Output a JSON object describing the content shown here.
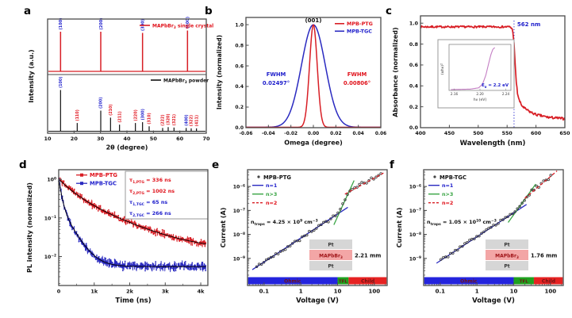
{
  "colors": {
    "red": "#d81e25",
    "blue": "#2a2ac0",
    "text_red": "#e0131c",
    "text_blue": "#2020cc",
    "green": "#3aa545",
    "black": "#101010",
    "frame": "#4a4a4a",
    "box_border": "#999999",
    "inset_curve": "#c47ec4",
    "bar_blue": "#2424dd",
    "bar_green": "#1fa11f",
    "bar_red": "#e62222",
    "bar_label": "#701414",
    "pt_fill": "#d6d6d6",
    "mapb_fill": "#f3a6a6",
    "mapb_text": "#a01418"
  },
  "chart_data": [
    {
      "id": "a",
      "label": "a",
      "type": "line",
      "xlabel": "2θ (degree)",
      "ylabel": "Intensity (a.u.)",
      "xlim": [
        10,
        70
      ],
      "xticks": [
        10,
        20,
        30,
        40,
        50,
        60,
        70
      ],
      "crystal_legend_parts": [
        {
          "t": "MAPbBr"
        },
        {
          "sub": "3"
        },
        {
          "t": " single crystal"
        }
      ],
      "powder_legend_parts": [
        {
          "t": "MAPbBr"
        },
        {
          "sub": "3"
        },
        {
          "t": " powder"
        }
      ],
      "crystal_peaks": [
        {
          "x": 14.9,
          "h": 1.0,
          "label": "(100)"
        },
        {
          "x": 30.1,
          "h": 1.0,
          "label": "(200)"
        },
        {
          "x": 45.9,
          "h": 0.97,
          "label": "(300)"
        },
        {
          "x": 62.9,
          "h": 1.03,
          "label": "(400)"
        }
      ],
      "powder_peaks": [
        {
          "x": 14.9,
          "h": 1.0,
          "label": "(100)",
          "c": "blue"
        },
        {
          "x": 21.2,
          "h": 0.2,
          "label": "(110)",
          "c": "red"
        },
        {
          "x": 30.1,
          "h": 0.5,
          "label": "(200)",
          "c": "blue"
        },
        {
          "x": 33.8,
          "h": 0.33,
          "label": "(210)",
          "c": "red"
        },
        {
          "x": 37.2,
          "h": 0.16,
          "label": "(211)",
          "c": "red"
        },
        {
          "x": 43.2,
          "h": 0.2,
          "label": "(220)",
          "c": "red"
        },
        {
          "x": 45.9,
          "h": 0.22,
          "label": "(300)",
          "c": "blue"
        },
        {
          "x": 48.4,
          "h": 0.12,
          "label": "(310)",
          "c": "red"
        },
        {
          "x": 53.5,
          "h": 0.08,
          "label": "(222)",
          "c": "red"
        },
        {
          "x": 55.6,
          "h": 0.1,
          "label": "(320)",
          "c": "red"
        },
        {
          "x": 57.8,
          "h": 0.09,
          "label": "(321)",
          "c": "red"
        },
        {
          "x": 62.4,
          "h": 0.08,
          "label": "(400)",
          "c": "blue"
        },
        {
          "x": 64.3,
          "h": 0.07,
          "label": "(322)",
          "c": "red"
        },
        {
          "x": 66.3,
          "h": 0.07,
          "label": "(411)",
          "c": "red"
        }
      ]
    },
    {
      "id": "b",
      "label": "b",
      "type": "line",
      "xlabel": "Omega (degree)",
      "ylabel": "Intensity (normalized)",
      "xlim": [
        -0.06,
        0.06
      ],
      "xtick_labels": [
        "-0.06",
        "-0.04",
        "-0.02",
        "0.00",
        "0.02",
        "0.04",
        "0.06"
      ],
      "ytick_labels": [
        "0.0",
        "0.2",
        "0.4",
        "0.6",
        "0.8",
        "1.0"
      ],
      "peak_label": "(001)",
      "series": [
        {
          "name": "MPB-PTG",
          "color": "red",
          "fwhm": 0.00806,
          "fwhm_lines": [
            "FWHM",
            "0.00806°"
          ],
          "side": "right"
        },
        {
          "name": "MPB-TGC",
          "color": "blue",
          "fwhm": 0.02497,
          "fwhm_lines": [
            "FWHM",
            "0.02497°"
          ],
          "side": "left"
        }
      ]
    },
    {
      "id": "c",
      "label": "c",
      "type": "line",
      "xlabel": "Wavelength (nm)",
      "ylabel": "Absorbance (normalized)",
      "xlim": [
        400,
        650
      ],
      "xticks": [
        400,
        450,
        500,
        550,
        600,
        650
      ],
      "ytick_labels": [
        "0.0",
        "0.2",
        "0.4",
        "0.6",
        "0.8",
        "1.0"
      ],
      "edge_nm": 562,
      "edge_label": "562 nm",
      "curve": [
        [
          400,
          0.965
        ],
        [
          555,
          0.965
        ],
        [
          558,
          0.95
        ],
        [
          560,
          0.92
        ],
        [
          562,
          0.8
        ],
        [
          564,
          0.6
        ],
        [
          566,
          0.43
        ],
        [
          568,
          0.33
        ],
        [
          571,
          0.26
        ],
        [
          575,
          0.215
        ],
        [
          580,
          0.185
        ],
        [
          590,
          0.15
        ],
        [
          600,
          0.125
        ],
        [
          620,
          0.1
        ],
        [
          650,
          0.085
        ]
      ],
      "inset": {
        "xlabel_parts": [
          {
            "t": "hν (eV)"
          }
        ],
        "ylabel_parts": [
          {
            "t": "(αhν)"
          },
          {
            "sup": "2"
          }
        ],
        "xtick_labels": [
          "2.16",
          "2.20",
          "2.24"
        ],
        "eg_parts": [
          {
            "t": "E"
          },
          {
            "sub": "g"
          },
          {
            "t": " = 2.2 eV"
          }
        ],
        "curve": [
          [
            2.155,
            0.02
          ],
          [
            2.185,
            0.03
          ],
          [
            2.198,
            0.06
          ],
          [
            2.204,
            0.15
          ],
          [
            2.209,
            0.35
          ],
          [
            2.213,
            0.6
          ],
          [
            2.217,
            0.84
          ],
          [
            2.22,
            0.96
          ],
          [
            2.223,
            1.0
          ]
        ]
      }
    },
    {
      "id": "d",
      "label": "d",
      "type": "scatter",
      "xlabel": "Time (ns)",
      "ylabel": "PL intensity (normalized)",
      "xlim": [
        0,
        4000
      ],
      "xtick_labels": [
        "0",
        "1k",
        "2k",
        "3k",
        "4k"
      ],
      "ytick_exps": [
        "0",
        "−1",
        "−2"
      ],
      "series": [
        {
          "name": "MPB-PTG",
          "color": "red",
          "a1": 0.55,
          "tau1": 336,
          "a2": 0.45,
          "tau2": 1002,
          "floor": 0.014,
          "noise": 0.2
        },
        {
          "name": "MPB-TGC",
          "color": "blue",
          "a1": 0.78,
          "tau1": 65,
          "a2": 0.22,
          "tau2": 266,
          "floor": 0.0055,
          "noise": 0.27
        }
      ],
      "tau_annotations": [
        {
          "parts": [
            {
              "t": "τ"
            },
            {
              "sub": "1,PTG"
            },
            {
              "t": " = 336 ns"
            }
          ],
          "color": "red"
        },
        {
          "parts": [
            {
              "t": "τ"
            },
            {
              "sub": "2,PTG"
            },
            {
              "t": " = 1002 ns"
            }
          ],
          "color": "red"
        },
        {
          "parts": [
            {
              "t": "τ"
            },
            {
              "sub": "1,TGC"
            },
            {
              "t": " = 65 ns"
            }
          ],
          "color": "blue"
        },
        {
          "parts": [
            {
              "t": "τ"
            },
            {
              "sub": "2,TGC"
            },
            {
              "t": " = 266 ns"
            }
          ],
          "color": "blue"
        }
      ]
    },
    {
      "id": "e",
      "label": "e",
      "type": "scatter",
      "name": "MPB-PTG",
      "xlabel": "Voltage (V)",
      "ylabel": "Current (A)",
      "xtick_labels": [
        "0.1",
        "1",
        "10",
        "100"
      ],
      "ytick_exps": [
        "−6",
        "−7",
        "−8",
        "−9"
      ],
      "ntraps_parts": [
        {
          "t": "n"
        },
        {
          "sub": "traps"
        },
        {
          "t": " = 4.25 × 10"
        },
        {
          "sup": "9"
        },
        {
          "t": " cm"
        },
        {
          "sup": "−3"
        }
      ],
      "legend": [
        {
          "label": "n=1",
          "color": "blue",
          "dash": false
        },
        {
          "label": "n>3",
          "color": "green",
          "dash": false
        },
        {
          "label": "n=2",
          "color": "red",
          "dash": true
        }
      ],
      "anchors": [
        [
          -1.2,
          -9.35
        ],
        [
          1.0,
          -7.15
        ],
        [
          1.35,
          -6.15
        ],
        [
          2.18,
          -5.5
        ]
      ],
      "fit_blue": [
        [
          -1.32,
          -9.47
        ],
        [
          1.28,
          -6.87
        ]
      ],
      "fit_green": [
        [
          0.9,
          -7.6
        ],
        [
          1.45,
          -5.75
        ]
      ],
      "fit_red": [
        [
          1.2,
          -6.32
        ],
        [
          2.25,
          -5.44
        ]
      ],
      "regions": {
        "blue_to": 1.0,
        "green_to": 1.3
      },
      "region_labels": [
        "Ohmic",
        "TFL",
        "Child"
      ],
      "device_layers": {
        "top": "Pt",
        "bottom": "Pt",
        "middle_parts": [
          {
            "t": "MAPbBr"
          },
          {
            "sub": "3"
          }
        ]
      },
      "thickness": "2.21 mm"
    },
    {
      "id": "f",
      "label": "f",
      "type": "scatter",
      "name": "MPB-TGC",
      "xlabel": "Voltage (V)",
      "ylabel": "Current (A)",
      "xtick_labels": [
        "0.1",
        "1",
        "10",
        "100"
      ],
      "ytick_exps": [
        "−6",
        "−7",
        "−8",
        "−9"
      ],
      "ntraps_parts": [
        {
          "t": "n"
        },
        {
          "sub": "traps"
        },
        {
          "t": " = 1.05 × 10"
        },
        {
          "sup": "10"
        },
        {
          "t": " cm"
        },
        {
          "sup": "−3"
        }
      ],
      "legend": [
        {
          "label": "n=1",
          "color": "blue",
          "dash": false
        },
        {
          "label": "n>3",
          "color": "green",
          "dash": false
        },
        {
          "label": "n=2",
          "color": "red",
          "dash": true
        }
      ],
      "anchors": [
        [
          -0.98,
          -9.05
        ],
        [
          1.0,
          -7.1
        ],
        [
          1.5,
          -6.2
        ],
        [
          2.05,
          -5.5
        ]
      ],
      "fit_blue": [
        [
          -1.1,
          -9.2
        ],
        [
          1.35,
          -6.75
        ]
      ],
      "fit_green": [
        [
          0.85,
          -7.5
        ],
        [
          1.6,
          -5.9
        ]
      ],
      "fit_red": [
        [
          1.3,
          -6.5
        ],
        [
          2.18,
          -5.35
        ]
      ],
      "regions": {
        "blue_to": 1.0,
        "green_to": 1.55
      },
      "region_labels": [
        "Ohmic",
        "TFL",
        "Child"
      ],
      "device_layers": {
        "top": "Pt",
        "bottom": "Pt",
        "middle_parts": [
          {
            "t": "MAPbBr"
          },
          {
            "sub": "3"
          }
        ]
      },
      "thickness": "1.76 mm"
    }
  ]
}
